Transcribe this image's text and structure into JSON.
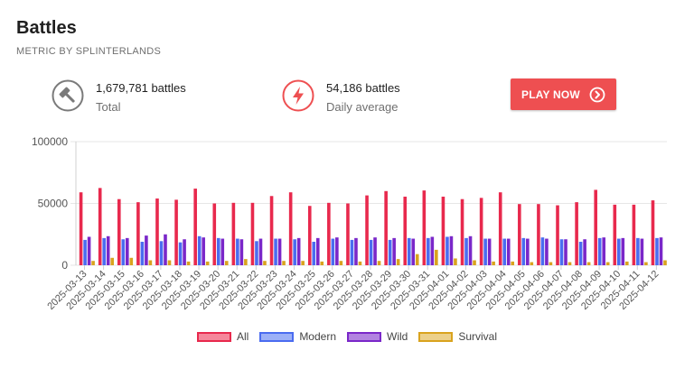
{
  "header": {
    "title": "Battles",
    "subtitle": "METRIC BY SPLINTERLANDS"
  },
  "stats": {
    "total": {
      "value": "1,679,781 battles",
      "label": "Total",
      "icon": "hammer-icon"
    },
    "daily": {
      "value": "54,186 battles",
      "label": "Daily average",
      "icon": "lightning-icon"
    }
  },
  "cta": {
    "label": "PLAY NOW",
    "icon": "chevron-right-circle-icon",
    "color": "#ee4f51"
  },
  "chart_data": {
    "type": "bar",
    "categories": [
      "2025-03-13",
      "2025-03-14",
      "2025-03-15",
      "2025-03-16",
      "2025-03-17",
      "2025-03-18",
      "2025-03-19",
      "2025-03-20",
      "2025-03-21",
      "2025-03-22",
      "2025-03-23",
      "2025-03-24",
      "2025-03-25",
      "2025-03-26",
      "2025-03-27",
      "2025-03-28",
      "2025-03-29",
      "2025-03-30",
      "2025-03-31",
      "2025-04-01",
      "2025-04-02",
      "2025-04-03",
      "2025-04-04",
      "2025-04-05",
      "2025-04-06",
      "2025-04-07",
      "2025-04-08",
      "2025-04-09",
      "2025-04-10",
      "2025-04-11",
      "2025-04-12"
    ],
    "series": [
      {
        "name": "All",
        "color": "#e8294d",
        "fill": "#f5879b",
        "values": [
          59000,
          62500,
          53500,
          51000,
          54000,
          53000,
          62000,
          50000,
          50500,
          50500,
          56000,
          59000,
          48000,
          50500,
          50000,
          56500,
          60000,
          55500,
          60500,
          55500,
          53500,
          54500,
          59000,
          49500,
          49500,
          48500,
          51000,
          61000,
          49000,
          49000,
          52500
        ]
      },
      {
        "name": "Modern",
        "color": "#4a6cf0",
        "fill": "#9cb0f7",
        "values": [
          20500,
          22000,
          21000,
          19000,
          19500,
          18500,
          23500,
          22000,
          21500,
          19500,
          21500,
          21000,
          19000,
          21500,
          20500,
          20500,
          20500,
          22000,
          22000,
          23000,
          22000,
          21500,
          21500,
          22000,
          22500,
          21000,
          19000,
          22000,
          21500,
          22000,
          22000
        ]
      },
      {
        "name": "Wild",
        "color": "#7a27c9",
        "fill": "#b283e0",
        "values": [
          23000,
          23500,
          22000,
          24000,
          25000,
          21000,
          22500,
          21500,
          21000,
          21500,
          21500,
          22000,
          22000,
          22500,
          22000,
          22500,
          22000,
          21500,
          23000,
          23500,
          23500,
          21500,
          21500,
          21500,
          21500,
          21000,
          21000,
          22500,
          22000,
          21500,
          22500
        ]
      },
      {
        "name": "Survival",
        "color": "#d9a31e",
        "fill": "#ecd08a",
        "values": [
          3500,
          6000,
          6000,
          4000,
          4000,
          3000,
          3000,
          3500,
          5000,
          3500,
          3500,
          3500,
          3000,
          3500,
          3000,
          3500,
          5000,
          9000,
          12500,
          5500,
          4000,
          3000,
          3000,
          2500,
          2500,
          2500,
          2500,
          2500,
          3000,
          2500,
          4000
        ]
      }
    ],
    "ylim": [
      0,
      100000
    ],
    "yticks": [
      "0",
      "50000",
      "100000"
    ],
    "ytick_values": [
      0,
      50000,
      100000
    ],
    "grid": true,
    "legend_position": "bottom"
  }
}
